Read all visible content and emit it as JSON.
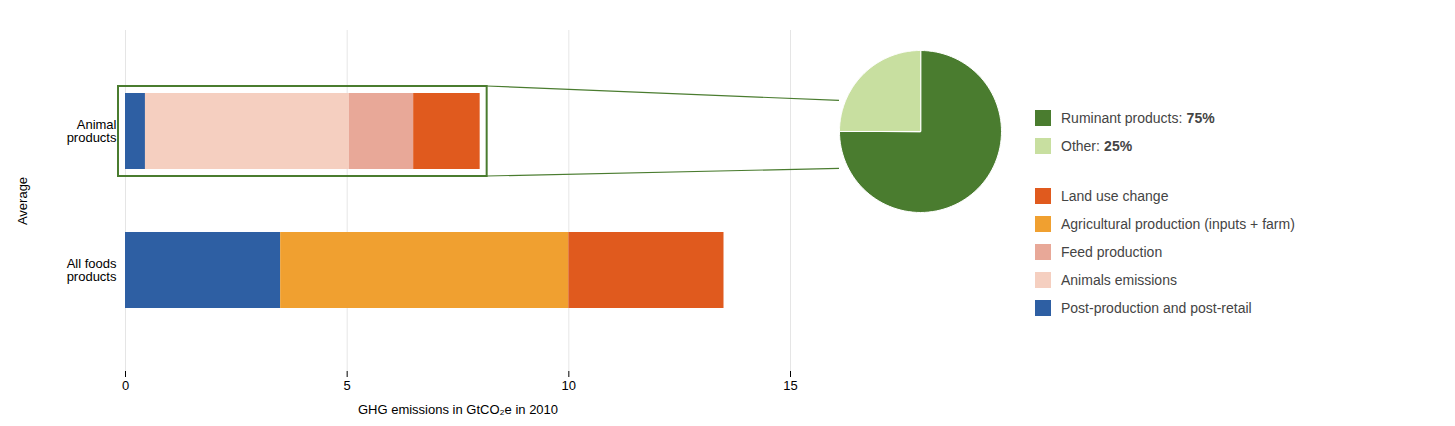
{
  "chart_data": [
    {
      "type": "bar",
      "orientation": "horizontal",
      "stacked": true,
      "categories": [
        "All foods\nproducts",
        "Animal\nproducts"
      ],
      "series": [
        {
          "name": "Land use change",
          "color": "#e05a1e",
          "values": [
            3.5,
            1.5
          ]
        },
        {
          "name": "Agricultural production (inputs + farm)",
          "color": "#f0a030",
          "values": [
            6.5,
            null
          ]
        },
        {
          "name": "Feed production",
          "color": "#e8a898",
          "values": [
            null,
            1.45
          ]
        },
        {
          "name": "Animals emissions",
          "color": "#f5cfc0",
          "values": [
            null,
            4.6
          ]
        },
        {
          "name": "Post-production and post-retail",
          "color": "#2e5fa3",
          "values": [
            3.5,
            0.45
          ]
        }
      ],
      "xlabel": "GHG emissions in GtCO₂e in 2010",
      "ylabel": "Average",
      "xlim": [
        0,
        15
      ],
      "xticks": [
        0,
        5,
        10,
        15
      ],
      "grid": true,
      "legend": "right"
    },
    {
      "type": "pie",
      "categories": [
        "Ruminant products:",
        "Other:"
      ],
      "values": [
        75,
        25
      ],
      "value_labels": [
        "75%",
        "25%"
      ],
      "colors": [
        "#4a7c2f",
        "#c8dfa0"
      ],
      "legend": "right"
    }
  ]
}
